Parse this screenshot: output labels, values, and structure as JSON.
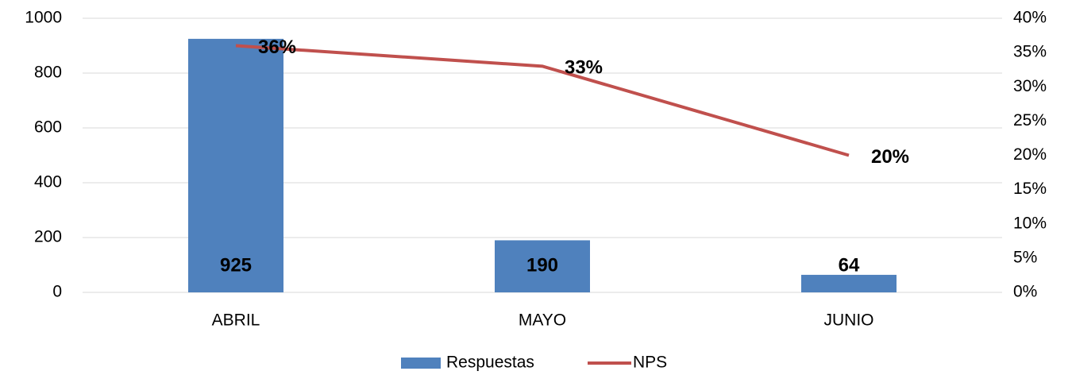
{
  "chart_data": {
    "type": "combo",
    "categories": [
      "ABRIL",
      "MAYO",
      "JUNIO"
    ],
    "series": [
      {
        "name": "Respuestas",
        "type": "bar",
        "color": "#4f81bd",
        "values": [
          925,
          190,
          64
        ]
      },
      {
        "name": "NPS",
        "type": "line",
        "axis": "y2",
        "color": "#c0504d",
        "values": [
          36,
          33,
          20
        ],
        "value_labels": [
          "36%",
          "33%",
          "20%"
        ]
      }
    ],
    "ylim": [
      0,
      1000
    ],
    "yticks": [
      0,
      200,
      400,
      600,
      800,
      1000
    ],
    "y2lim": [
      0,
      40
    ],
    "y2ticks": [
      {
        "value": 0,
        "label": "0%"
      },
      {
        "value": 5,
        "label": "5%"
      },
      {
        "value": 10,
        "label": "10%"
      },
      {
        "value": 15,
        "label": "15%"
      },
      {
        "value": 20,
        "label": "20%"
      },
      {
        "value": 25,
        "label": "25%"
      },
      {
        "value": 30,
        "label": "30%"
      },
      {
        "value": 35,
        "label": "35%"
      },
      {
        "value": 40,
        "label": "40%"
      }
    ],
    "grid": true,
    "legend": "bottom"
  }
}
